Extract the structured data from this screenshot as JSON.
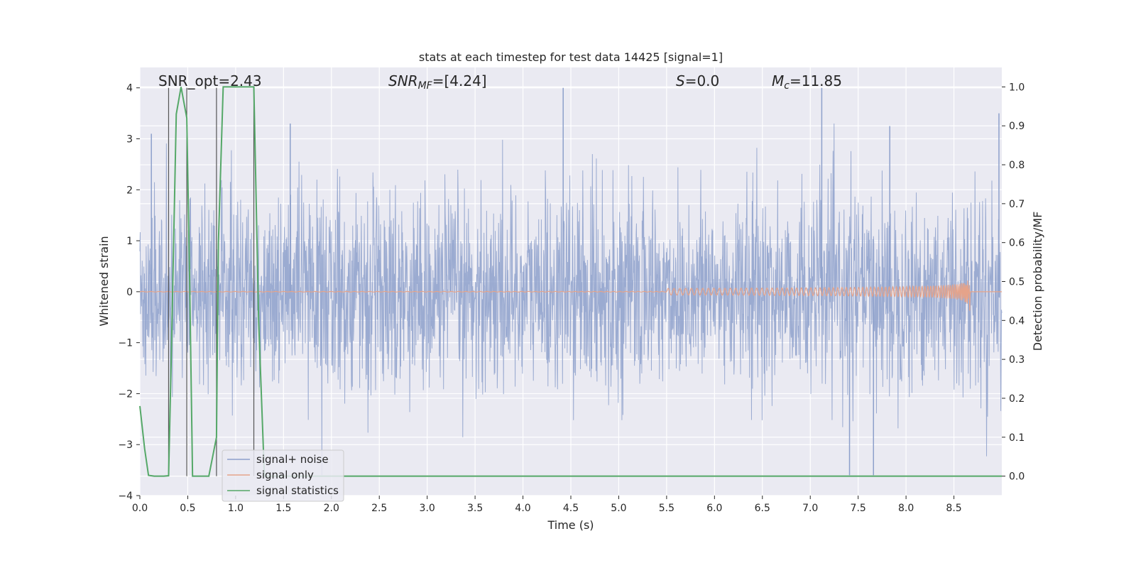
{
  "chart_data": {
    "type": "line",
    "title": "stats at each timestep for test data 14425 [signal=1]",
    "xlabel": "Time (s)",
    "ylabel_left": "Whitened strain",
    "ylabel_right": "Detection probability/MF",
    "xlim": [
      0.0,
      9.0
    ],
    "ylim_left": [
      -4.0,
      4.4
    ],
    "ylim_right": [
      -0.05,
      1.05
    ],
    "x_ticks": [
      "0.0",
      "0.5",
      "1.0",
      "1.5",
      "2.0",
      "2.5",
      "3.0",
      "3.5",
      "4.0",
      "4.5",
      "5.0",
      "5.5",
      "6.0",
      "6.5",
      "7.0",
      "7.5",
      "8.0",
      "8.5"
    ],
    "y_ticks_left": [
      "−4",
      "−3",
      "−2",
      "−1",
      "0",
      "1",
      "2",
      "3",
      "4"
    ],
    "y_ticks_right": [
      "0.0",
      "0.1",
      "0.2",
      "0.3",
      "0.4",
      "0.5",
      "0.6",
      "0.7",
      "0.8",
      "0.9",
      "1.0"
    ],
    "grid": true,
    "legend_position": "lower-left",
    "annotations": {
      "snr_opt": "SNR_opt=2.43",
      "snr_mf_main": "SNR",
      "snr_mf_sub": "MF",
      "snr_mf_value": "=[4.24]",
      "s_main": "S",
      "s_value": "=0.0",
      "mc_main": "M",
      "mc_sub": "c",
      "mc_value": "=11.85"
    },
    "series": [
      {
        "name": "signal+ noise",
        "color": "#8da0cb",
        "axis": "left",
        "description_range": [
          -3.6,
          4.0
        ],
        "notable_peaks": [
          [
            0.12,
            3.1
          ],
          [
            1.57,
            3.3
          ],
          [
            4.42,
            4.0
          ],
          [
            7.12,
            4.0
          ],
          [
            7.83,
            3.25
          ],
          [
            8.97,
            3.5
          ],
          [
            7.41,
            -3.6
          ],
          [
            7.66,
            -3.6
          ]
        ]
      },
      {
        "name": "signal only",
        "color": "#e5a38a",
        "axis": "left",
        "chirp_end_time": 8.67,
        "chirp_peak_amplitude": 0.42
      },
      {
        "name": "signal statistics",
        "color": "#55a868",
        "axis": "right",
        "x": [
          0.0,
          0.05,
          0.09,
          0.15,
          0.25,
          0.3,
          0.33,
          0.38,
          0.43,
          0.49,
          0.52,
          0.55,
          0.62,
          0.72,
          0.8,
          0.82,
          0.87,
          0.89,
          1.0,
          1.1,
          1.19,
          1.24,
          1.3,
          1.5,
          2.0,
          3.0,
          4.0,
          5.0,
          6.0,
          7.0,
          8.0,
          9.0
        ],
        "y": [
          0.18,
          0.07,
          0.002,
          0.0,
          0.0,
          0.001,
          0.33,
          0.93,
          1.0,
          0.92,
          0.5,
          0.0,
          0.0,
          0.0,
          0.1,
          0.6,
          1.0,
          1.0,
          1.0,
          1.0,
          1.0,
          0.4,
          0.0,
          0.0,
          0.0,
          0.0,
          0.0,
          0.0,
          0.0,
          0.0,
          0.0,
          0.0
        ]
      }
    ],
    "vertical_lines_x": [
      0.3,
      0.49,
      0.8,
      1.19
    ]
  }
}
